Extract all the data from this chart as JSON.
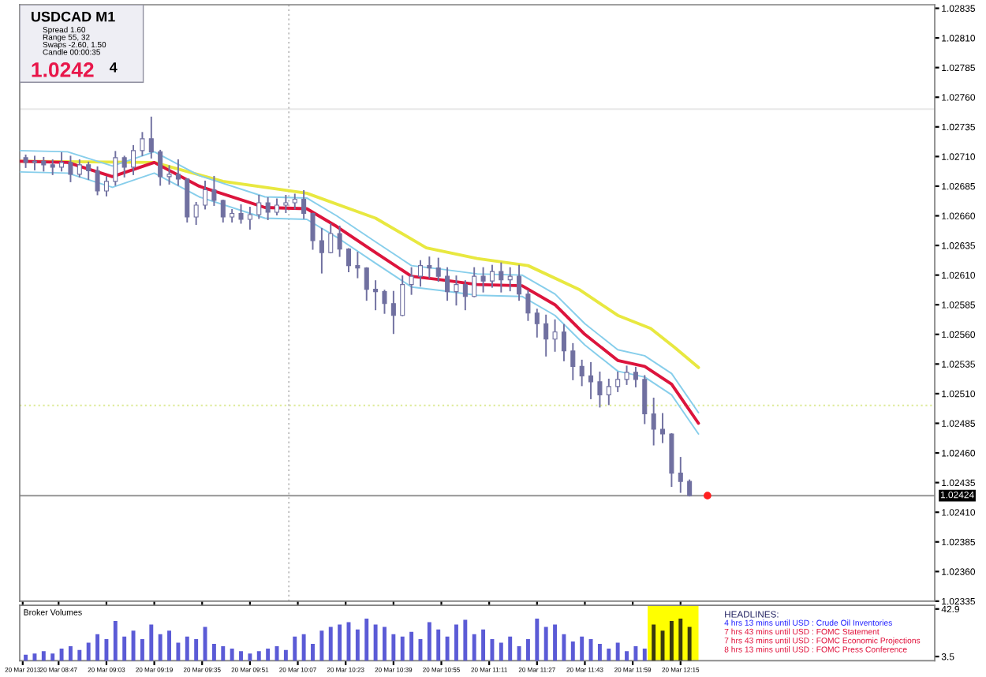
{
  "chart_data": [
    {
      "type": "candlestick",
      "title": "USDCAD M1",
      "annotations": [
        "Spread 1.60",
        "Range 55, 32",
        "Swaps -2.60, 1.50",
        "Candle 00:00:35",
        "1.0242",
        "4"
      ],
      "x": [
        "2013-03-20T08:36",
        "2013-03-20T08:39",
        "2013-03-20T08:42",
        "2013-03-20T08:45",
        "2013-03-20T08:48",
        "2013-03-20T08:51",
        "2013-03-20T08:54",
        "2013-03-20T08:57",
        "2013-03-20T09:00",
        "2013-03-20T09:03",
        "2013-03-20T09:06",
        "2013-03-20T09:09",
        "2013-03-20T09:12",
        "2013-03-20T09:15",
        "2013-03-20T09:18",
        "2013-03-20T09:21",
        "2013-03-20T09:24",
        "2013-03-20T09:27",
        "2013-03-20T09:30",
        "2013-03-20T09:33",
        "2013-03-20T09:36",
        "2013-03-20T09:39",
        "2013-03-20T09:42",
        "2013-03-20T09:45",
        "2013-03-20T09:48",
        "2013-03-20T09:51",
        "2013-03-20T09:54",
        "2013-03-20T09:57",
        "2013-03-20T10:00",
        "2013-03-20T10:03",
        "2013-03-20T10:06",
        "2013-03-20T10:09",
        "2013-03-20T10:12",
        "2013-03-20T10:15",
        "2013-03-20T10:18",
        "2013-03-20T10:21",
        "2013-03-20T10:24",
        "2013-03-20T10:27",
        "2013-03-20T10:30",
        "2013-03-20T10:33",
        "2013-03-20T10:36",
        "2013-03-20T10:39",
        "2013-03-20T10:42",
        "2013-03-20T10:45",
        "2013-03-20T10:48",
        "2013-03-20T10:51",
        "2013-03-20T10:54",
        "2013-03-20T10:57",
        "2013-03-20T11:00",
        "2013-03-20T11:03",
        "2013-03-20T11:06",
        "2013-03-20T11:09",
        "2013-03-20T11:12",
        "2013-03-20T11:15",
        "2013-03-20T11:18",
        "2013-03-20T11:21",
        "2013-03-20T11:24",
        "2013-03-20T11:27",
        "2013-03-20T11:30",
        "2013-03-20T11:33",
        "2013-03-20T11:36",
        "2013-03-20T11:39",
        "2013-03-20T11:42",
        "2013-03-20T11:45",
        "2013-03-20T11:48",
        "2013-03-20T11:51",
        "2013-03-20T11:54",
        "2013-03-20T11:57",
        "2013-03-20T12:00",
        "2013-03-20T12:03",
        "2013-03-20T12:06",
        "2013-03-20T12:09",
        "2013-03-20T12:12",
        "2013-03-20T12:15",
        "2013-03-20T12:18"
      ],
      "series": [
        {
          "type": "line",
          "color": "#e8e840",
          "x": [
            "2013-03-20T08:34",
            "2013-03-20T09:19",
            "2013-03-20T09:42",
            "2013-03-20T10:10",
            "2013-03-20T10:33",
            "2013-03-20T10:50",
            "2013-03-20T11:07",
            "2013-03-20T11:24",
            "2013-03-20T11:41",
            "2013-03-20T11:54",
            "2013-03-20T12:05",
            "2013-03-20T12:13",
            "2013-03-20T12:21"
          ],
          "values": [
            1.02706,
            1.02705,
            1.02689,
            1.02679,
            1.02658,
            1.02633,
            1.02624,
            1.02618,
            1.02598,
            1.02576,
            1.02565,
            1.02549,
            1.02532
          ]
        },
        {
          "type": "line",
          "color": "#87ceeb",
          "x": [
            "2013-03-20T08:34",
            "2013-03-20T08:50",
            "2013-03-20T09:05",
            "2013-03-20T09:19",
            "2013-03-20T09:34",
            "2013-03-20T09:56",
            "2013-03-20T10:10",
            "2013-03-20T10:20",
            "2013-03-20T10:33",
            "2013-03-20T10:45",
            "2013-03-20T10:55",
            "2013-03-20T11:07",
            "2013-03-20T11:22",
            "2013-03-20T11:33",
            "2013-03-20T11:43",
            "2013-03-20T11:54",
            "2013-03-20T12:03",
            "2013-03-20T12:12",
            "2013-03-20T12:21"
          ],
          "values": [
            1.02715,
            1.02714,
            1.02702,
            1.02714,
            1.02694,
            1.02676,
            1.02675,
            1.0266,
            1.02638,
            1.02618,
            1.02615,
            1.02611,
            1.0261,
            1.02594,
            1.02569,
            1.02547,
            1.02542,
            1.02527,
            1.02494
          ]
        },
        {
          "type": "line",
          "color": "#87ceeb",
          "x": [
            "2013-03-20T08:34",
            "2013-03-20T08:50",
            "2013-03-20T09:05",
            "2013-03-20T09:19",
            "2013-03-20T09:34",
            "2013-03-20T09:56",
            "2013-03-20T10:10",
            "2013-03-20T10:20",
            "2013-03-20T10:33",
            "2013-03-20T10:45",
            "2013-03-20T10:55",
            "2013-03-20T11:07",
            "2013-03-20T11:22",
            "2013-03-20T11:33",
            "2013-03-20T11:43",
            "2013-03-20T11:54",
            "2013-03-20T12:03",
            "2013-03-20T12:12",
            "2013-03-20T12:21"
          ],
          "values": [
            1.02697,
            1.02696,
            1.02684,
            1.02696,
            1.02676,
            1.02658,
            1.02657,
            1.02642,
            1.0262,
            1.026,
            1.02597,
            1.02593,
            1.02592,
            1.02576,
            1.02551,
            1.02529,
            1.02524,
            1.02509,
            1.02476
          ]
        },
        {
          "type": "line",
          "color": "#dc143c",
          "x": [
            "2013-03-20T08:34",
            "2013-03-20T08:50",
            "2013-03-20T09:05",
            "2013-03-20T09:19",
            "2013-03-20T09:34",
            "2013-03-20T09:56",
            "2013-03-20T10:10",
            "2013-03-20T10:20",
            "2013-03-20T10:33",
            "2013-03-20T10:45",
            "2013-03-20T10:55",
            "2013-03-20T11:07",
            "2013-03-20T11:22",
            "2013-03-20T11:33",
            "2013-03-20T11:43",
            "2013-03-20T11:54",
            "2013-03-20T12:03",
            "2013-03-20T12:12",
            "2013-03-20T12:21"
          ],
          "values": [
            1.02706,
            1.02705,
            1.02693,
            1.02705,
            1.02685,
            1.02667,
            1.02666,
            1.02651,
            1.02629,
            1.02609,
            1.02606,
            1.02602,
            1.02601,
            1.02585,
            1.0256,
            1.02538,
            1.02533,
            1.02518,
            1.02485
          ]
        },
        {
          "type": "candlestick",
          "color": "#7070a0",
          "ohlc": [
            [
              1.02709,
              1.02711,
              1.02701,
              1.02705
            ],
            [
              1.02705,
              1.0271,
              1.02699,
              1.02706
            ],
            [
              1.02706,
              1.02709,
              1.02698,
              1.02703
            ],
            [
              1.02703,
              1.02707,
              1.02695,
              1.02701
            ],
            [
              1.02701,
              1.02713,
              1.02698,
              1.02705
            ],
            [
              1.02705,
              1.0271,
              1.02689,
              1.02695
            ],
            [
              1.02695,
              1.02707,
              1.02693,
              1.02703
            ],
            [
              1.02703,
              1.02705,
              1.02691,
              1.02698
            ],
            [
              1.02698,
              1.02701,
              1.02678,
              1.02681
            ],
            [
              1.02681,
              1.02693,
              1.02677,
              1.02689
            ],
            [
              1.02689,
              1.02714,
              1.02686,
              1.02709
            ],
            [
              1.02709,
              1.0271,
              1.02693,
              1.02701
            ],
            [
              1.02701,
              1.02719,
              1.02695,
              1.02715
            ],
            [
              1.02715,
              1.0273,
              1.02711,
              1.02725
            ],
            [
              1.02725,
              1.02743,
              1.02709,
              1.02714
            ],
            [
              1.02714,
              1.02715,
              1.02686,
              1.02693
            ],
            [
              1.02693,
              1.02702,
              1.02687,
              1.02695
            ],
            [
              1.02695,
              1.02707,
              1.02686,
              1.02691
            ],
            [
              1.02691,
              1.02691,
              1.02655,
              1.02659
            ],
            [
              1.02659,
              1.02671,
              1.02653,
              1.02669
            ],
            [
              1.02669,
              1.02689,
              1.02666,
              1.02682
            ],
            [
              1.02682,
              1.02693,
              1.02669,
              1.02673
            ],
            [
              1.02673,
              1.02673,
              1.02655,
              1.02659
            ],
            [
              1.02659,
              1.02665,
              1.02655,
              1.02662
            ],
            [
              1.02662,
              1.02669,
              1.02654,
              1.02657
            ],
            [
              1.02657,
              1.02667,
              1.02649,
              1.02661
            ],
            [
              1.02661,
              1.02677,
              1.02658,
              1.02671
            ],
            [
              1.02671,
              1.02675,
              1.02657,
              1.02663
            ],
            [
              1.02663,
              1.02674,
              1.02661,
              1.02669
            ],
            [
              1.02669,
              1.02677,
              1.02663,
              1.02671
            ],
            [
              1.02671,
              1.02678,
              1.02666,
              1.02674
            ],
            [
              1.02674,
              1.02681,
              1.02658,
              1.02662
            ],
            [
              1.02662,
              1.02662,
              1.02632,
              1.02639
            ],
            [
              1.02639,
              1.02649,
              1.02612,
              1.02629
            ],
            [
              1.02629,
              1.02653,
              1.02629,
              1.02645
            ],
            [
              1.02645,
              1.02651,
              1.02626,
              1.02632
            ],
            [
              1.02632,
              1.02632,
              1.02613,
              1.02618
            ],
            [
              1.02618,
              1.02629,
              1.02608,
              1.02616
            ],
            [
              1.02616,
              1.02616,
              1.02589,
              1.02598
            ],
            [
              1.02598,
              1.02605,
              1.02581,
              1.02596
            ],
            [
              1.02596,
              1.02597,
              1.02578,
              1.02586
            ],
            [
              1.02586,
              1.02596,
              1.02561,
              1.02576
            ],
            [
              1.02576,
              1.02609,
              1.02576,
              1.02602
            ],
            [
              1.02602,
              1.02616,
              1.02594,
              1.02609
            ],
            [
              1.02609,
              1.02622,
              1.02601,
              1.02618
            ],
            [
              1.02618,
              1.02625,
              1.02608,
              1.02616
            ],
            [
              1.02616,
              1.02624,
              1.02605,
              1.02609
            ],
            [
              1.02609,
              1.02616,
              1.02589,
              1.02596
            ],
            [
              1.02596,
              1.02609,
              1.02585,
              1.02602
            ],
            [
              1.02602,
              1.02605,
              1.02581,
              1.02592
            ],
            [
              1.02592,
              1.02616,
              1.02592,
              1.02609
            ],
            [
              1.02609,
              1.02616,
              1.02596,
              1.02605
            ],
            [
              1.02605,
              1.02618,
              1.026,
              1.02613
            ],
            [
              1.02613,
              1.0262,
              1.02596,
              1.02606
            ],
            [
              1.02606,
              1.02616,
              1.02597,
              1.02609
            ],
            [
              1.02609,
              1.02618,
              1.02589,
              1.02594
            ],
            [
              1.02594,
              1.02597,
              1.02572,
              1.02578
            ],
            [
              1.02578,
              1.02581,
              1.02558,
              1.02569
            ],
            [
              1.02569,
              1.02576,
              1.02542,
              1.02556
            ],
            [
              1.02556,
              1.02572,
              1.02546,
              1.02562
            ],
            [
              1.02562,
              1.02568,
              1.02538,
              1.02546
            ],
            [
              1.02546,
              1.02552,
              1.02522,
              1.02533
            ],
            [
              1.02533,
              1.02538,
              1.02517,
              1.02525
            ],
            [
              1.02525,
              1.02536,
              1.02506,
              1.0252
            ],
            [
              1.0252,
              1.02528,
              1.02499,
              1.02509
            ],
            [
              1.02509,
              1.02522,
              1.02501,
              1.02516
            ],
            [
              1.02516,
              1.02528,
              1.02512,
              1.02522
            ],
            [
              1.02522,
              1.02533,
              1.02518,
              1.02528
            ],
            [
              1.02528,
              1.02532,
              1.02516,
              1.02522
            ],
            [
              1.02522,
              1.02525,
              1.02485,
              1.02493
            ],
            [
              1.02493,
              1.02506,
              1.02467,
              1.0248
            ],
            [
              1.0248,
              1.02493,
              1.02469,
              1.02476
            ],
            [
              1.02476,
              1.02476,
              1.02432,
              1.02443
            ],
            [
              1.02443,
              1.02456,
              1.02427,
              1.02436
            ],
            [
              1.02436,
              1.02437,
              1.02424,
              1.02424
            ]
          ]
        },
        {
          "type": "scatter",
          "color": "#ff2020",
          "x": [
            "2013-03-20T12:24"
          ],
          "values": [
            1.02424
          ]
        }
      ],
      "ref_lines": [
        {
          "axis": "y",
          "value": 1.02424,
          "label": "1.02424",
          "color": "#a0a0a0",
          "line_style": "solid"
        },
        {
          "axis": "y",
          "value": 1.025,
          "color": "#e0eca0",
          "line_style": "dotted"
        },
        {
          "axis": "y",
          "value": 1.0275,
          "color": "#e8e8e8",
          "line_style": "solid"
        },
        {
          "axis": "x",
          "value": "2013-03-20T10:04",
          "color": "#c8c8c8",
          "line_style": "dotted"
        }
      ],
      "xlim": [
        "2013-03-20T08:34",
        "2013-03-20T13:40"
      ],
      "ylim": [
        1.02335,
        1.02838
      ],
      "xticks": [
        {
          "value": "2013-03-20T08:35",
          "label": null
        },
        {
          "value": "2013-03-20T08:47",
          "label": null
        },
        {
          "value": "2013-03-20T09:03",
          "label": null
        },
        {
          "value": "2013-03-20T09:19",
          "label": null
        },
        {
          "value": "2013-03-20T09:35",
          "label": null
        },
        {
          "value": "2013-03-20T09:51",
          "label": null
        },
        {
          "value": "2013-03-20T10:07",
          "label": null
        },
        {
          "value": "2013-03-20T10:23",
          "label": null
        },
        {
          "value": "2013-03-20T10:39",
          "label": null
        },
        {
          "value": "2013-03-20T10:55",
          "label": null
        },
        {
          "value": "2013-03-20T11:11",
          "label": null
        },
        {
          "value": "2013-03-20T11:27",
          "label": null
        },
        {
          "value": "2013-03-20T11:43",
          "label": null
        },
        {
          "value": "2013-03-20T11:59",
          "label": null
        },
        {
          "value": "2013-03-20T12:15",
          "label": null
        }
      ],
      "yticks": [
        1.02335,
        {
          "value": 1.0236,
          "label": "1.02360"
        },
        1.02385,
        {
          "value": 1.0241,
          "label": "1.02410"
        },
        1.02435,
        {
          "value": 1.0246,
          "label": "1.02460"
        },
        1.02485,
        {
          "value": 1.0251,
          "label": "1.02510"
        },
        1.02535,
        {
          "value": 1.0256,
          "label": "1.02560"
        },
        1.02585,
        {
          "value": 1.0261,
          "label": "1.02610"
        },
        1.02635,
        {
          "value": 1.0266,
          "label": "1.02660"
        },
        1.02685,
        {
          "value": 1.0271,
          "label": "1.02710"
        },
        1.02735,
        {
          "value": 1.0276,
          "label": "1.02760"
        },
        1.02785,
        {
          "value": 1.0281,
          "label": "1.02810"
        },
        1.02835
      ],
      "tick_labels": "y",
      "grid": false
    },
    {
      "type": "bar",
      "annotations": [
        "Broker Volumes",
        "HEADLINES:",
        "4 hrs 13 mins until USD : Crude Oil Inventories",
        "7 hrs 43 mins until USD : FOMC Statement",
        "7 hrs 43 mins until USD : FOMC Economic Projections",
        "8 hrs 13 mins until USD : FOMC Press Conference"
      ],
      "x": [
        "2013-03-20T08:36",
        "2013-03-20T08:39",
        "2013-03-20T08:42",
        "2013-03-20T08:45",
        "2013-03-20T08:48",
        "2013-03-20T08:51",
        "2013-03-20T08:54",
        "2013-03-20T08:57",
        "2013-03-20T09:00",
        "2013-03-20T09:03",
        "2013-03-20T09:06",
        "2013-03-20T09:09",
        "2013-03-20T09:12",
        "2013-03-20T09:15",
        "2013-03-20T09:18",
        "2013-03-20T09:21",
        "2013-03-20T09:24",
        "2013-03-20T09:27",
        "2013-03-20T09:30",
        "2013-03-20T09:33",
        "2013-03-20T09:36",
        "2013-03-20T09:39",
        "2013-03-20T09:42",
        "2013-03-20T09:45",
        "2013-03-20T09:48",
        "2013-03-20T09:51",
        "2013-03-20T09:54",
        "2013-03-20T09:57",
        "2013-03-20T10:00",
        "2013-03-20T10:03",
        "2013-03-20T10:06",
        "2013-03-20T10:09",
        "2013-03-20T10:12",
        "2013-03-20T10:15",
        "2013-03-20T10:18",
        "2013-03-20T10:21",
        "2013-03-20T10:24",
        "2013-03-20T10:27",
        "2013-03-20T10:30",
        "2013-03-20T10:33",
        "2013-03-20T10:36",
        "2013-03-20T10:39",
        "2013-03-20T10:42",
        "2013-03-20T10:45",
        "2013-03-20T10:48",
        "2013-03-20T10:51",
        "2013-03-20T10:54",
        "2013-03-20T10:57",
        "2013-03-20T11:00",
        "2013-03-20T11:03",
        "2013-03-20T11:06",
        "2013-03-20T11:09",
        "2013-03-20T11:12",
        "2013-03-20T11:15",
        "2013-03-20T11:18",
        "2013-03-20T11:21",
        "2013-03-20T11:24",
        "2013-03-20T11:27",
        "2013-03-20T11:30",
        "2013-03-20T11:33",
        "2013-03-20T11:36",
        "2013-03-20T11:39",
        "2013-03-20T11:42",
        "2013-03-20T11:45",
        "2013-03-20T11:48",
        "2013-03-20T11:51",
        "2013-03-20T11:54",
        "2013-03-20T11:57",
        "2013-03-20T12:00",
        "2013-03-20T12:03",
        "2013-03-20T12:06",
        "2013-03-20T12:09",
        "2013-03-20T12:12",
        "2013-03-20T12:15",
        "2013-03-20T12:18"
      ],
      "values": [
        5,
        6,
        8,
        6,
        10,
        12,
        9,
        15,
        22,
        18,
        33,
        20,
        25,
        18,
        30,
        22,
        25,
        15,
        20,
        18,
        28,
        14,
        12,
        10,
        8,
        6,
        8,
        10,
        12,
        9,
        20,
        22,
        14,
        25,
        28,
        30,
        32,
        26,
        35,
        30,
        28,
        22,
        20,
        24,
        18,
        32,
        26,
        20,
        30,
        34,
        22,
        26,
        18,
        15,
        20,
        12,
        18,
        35,
        28,
        30,
        22,
        16,
        20,
        18,
        14,
        10,
        15,
        8,
        12,
        10,
        30,
        25,
        33,
        35,
        28
      ],
      "colors": [
        "#5b5bd6",
        "#5b5bd6",
        "#5b5bd6",
        "#5b5bd6",
        "#5b5bd6",
        "#5b5bd6",
        "#5b5bd6",
        "#5b5bd6",
        "#5b5bd6",
        "#5b5bd6",
        "#5b5bd6",
        "#5b5bd6",
        "#5b5bd6",
        "#5b5bd6",
        "#5b5bd6",
        "#5b5bd6",
        "#5b5bd6",
        "#5b5bd6",
        "#5b5bd6",
        "#5b5bd6",
        "#5b5bd6",
        "#5b5bd6",
        "#5b5bd6",
        "#5b5bd6",
        "#5b5bd6",
        "#5b5bd6",
        "#5b5bd6",
        "#5b5bd6",
        "#5b5bd6",
        "#5b5bd6",
        "#5b5bd6",
        "#5b5bd6",
        "#5b5bd6",
        "#5b5bd6",
        "#5b5bd6",
        "#5b5bd6",
        "#5b5bd6",
        "#5b5bd6",
        "#5b5bd6",
        "#5b5bd6",
        "#5b5bd6",
        "#5b5bd6",
        "#5b5bd6",
        "#5b5bd6",
        "#5b5bd6",
        "#5b5bd6",
        "#5b5bd6",
        "#5b5bd6",
        "#5b5bd6",
        "#5b5bd6",
        "#5b5bd6",
        "#5b5bd6",
        "#5b5bd6",
        "#5b5bd6",
        "#5b5bd6",
        "#5b5bd6",
        "#5b5bd6",
        "#5b5bd6",
        "#5b5bd6",
        "#5b5bd6",
        "#5b5bd6",
        "#5b5bd6",
        "#5b5bd6",
        "#5b5bd6",
        "#5b5bd6",
        "#5b5bd6",
        "#5b5bd6",
        "#5b5bd6",
        "#5b5bd6",
        "#5b5bd6",
        "#3a3a10",
        "#3a3a10",
        "#3a3a10",
        "#3a3a10",
        "#3a3a10"
      ],
      "bands": [
        {
          "axis": "x",
          "from": "2013-03-20T12:04",
          "to": "2013-03-20T12:21",
          "color": "#ffff00"
        }
      ],
      "xlim": [
        "2013-03-20T08:34",
        "2013-03-20T13:40"
      ],
      "ylim": [
        0,
        46
      ],
      "yticks": [
        42.9,
        3.5
      ],
      "xticks": [
        {
          "value": "2013-03-20T08:35",
          "label": "20 Mar 2013"
        },
        {
          "value": "2013-03-20T08:47",
          "label": "20 Mar 08:47"
        },
        {
          "value": "2013-03-20T09:03",
          "label": "20 Mar 09:03"
        },
        {
          "value": "2013-03-20T09:19",
          "label": "20 Mar 09:19"
        },
        {
          "value": "2013-03-20T09:35",
          "label": "20 Mar 09:35"
        },
        {
          "value": "2013-03-20T09:51",
          "label": "20 Mar 09:51"
        },
        {
          "value": "2013-03-20T10:07",
          "label": "20 Mar 10:07"
        },
        {
          "value": "2013-03-20T10:23",
          "label": "20 Mar 10:23"
        },
        {
          "value": "2013-03-20T10:39",
          "label": "20 Mar 10:39"
        },
        {
          "value": "2013-03-20T10:55",
          "label": "20 Mar 10:55"
        },
        {
          "value": "2013-03-20T11:11",
          "label": "20 Mar 11:11"
        },
        {
          "value": "2013-03-20T11:27",
          "label": "20 Mar 11:27"
        },
        {
          "value": "2013-03-20T11:43",
          "label": "20 Mar 11:43"
        },
        {
          "value": "2013-03-20T11:59",
          "label": "20 Mar 11:59"
        },
        {
          "value": "2013-03-20T12:15",
          "label": "20 Mar 12:15"
        }
      ],
      "grid": false
    }
  ]
}
